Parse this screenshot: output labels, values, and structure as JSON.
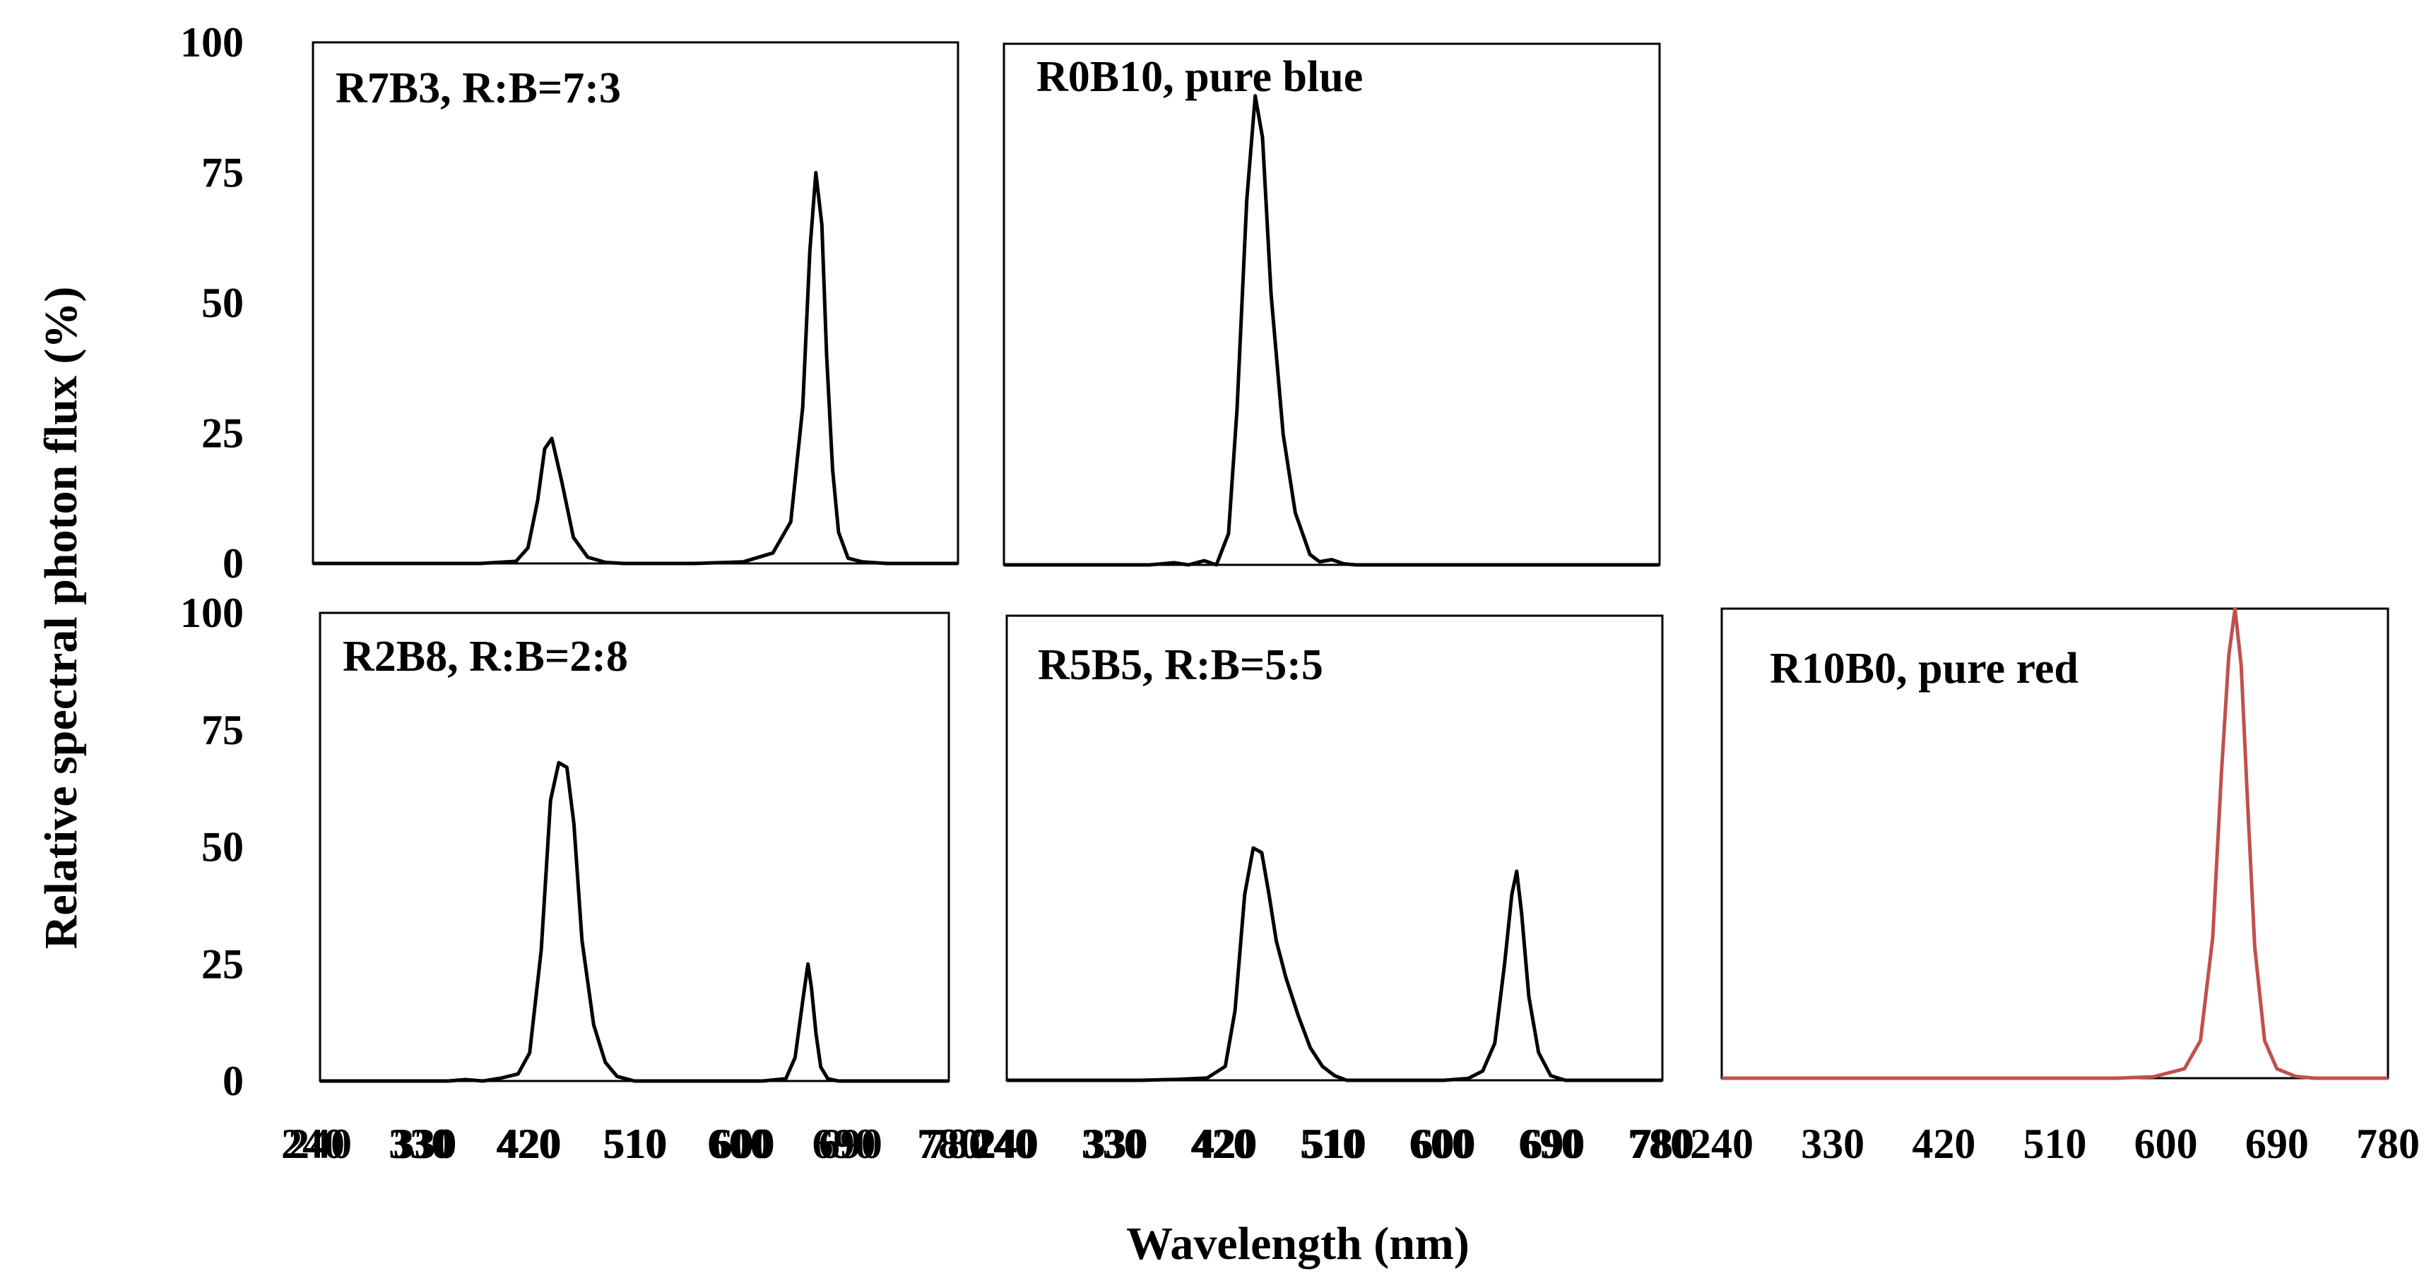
{
  "figure": {
    "ylabel": "Relative spectral photon flux (%)",
    "xlabel": "Wavelength (nm)"
  },
  "chart_data": [
    {
      "type": "line",
      "title": "R7B3, R:B=7:3",
      "xticks": [
        240,
        330,
        420,
        510,
        600,
        690,
        780
      ],
      "yticks": [
        0,
        25,
        50,
        75,
        100
      ],
      "xlim": [
        240,
        780
      ],
      "ylim": [
        0,
        100
      ],
      "grid": false,
      "series": [
        {
          "color": "#000000",
          "x": [
            240,
            380,
            410,
            420,
            428,
            434,
            440,
            448,
            458,
            470,
            485,
            500,
            560,
            600,
            625,
            640,
            650,
            656,
            661,
            666,
            670,
            675,
            680,
            688,
            700,
            720,
            780
          ],
          "y": [
            0,
            0,
            0.4,
            3,
            12,
            22,
            24,
            16,
            5,
            1.2,
            0.2,
            0,
            0,
            0.3,
            2,
            8,
            30,
            60,
            75,
            65,
            40,
            18,
            6,
            1,
            0.3,
            0,
            0
          ]
        }
      ]
    },
    {
      "type": "line",
      "title": "R0B10, pure blue",
      "xticks": [
        240,
        330,
        420,
        510,
        600,
        690,
        780
      ],
      "yticks": [
        0,
        25,
        50,
        75,
        100
      ],
      "xlim": [
        240,
        780
      ],
      "ylim": [
        0,
        100
      ],
      "grid": false,
      "series": [
        {
          "color": "#000000",
          "x": [
            240,
            360,
            380,
            392,
            405,
            415,
            425,
            432,
            440,
            447,
            453,
            460,
            470,
            480,
            492,
            500,
            510,
            520,
            530,
            780
          ],
          "y": [
            0,
            0,
            0.4,
            0,
            0.8,
            0,
            6,
            30,
            70,
            90,
            82,
            52,
            25,
            10,
            2,
            0.6,
            1,
            0.2,
            0,
            0
          ]
        }
      ]
    },
    {
      "type": "line",
      "title": "R2B8, R:B=2:8",
      "xticks": [
        240,
        330,
        420,
        510,
        600,
        690,
        780
      ],
      "yticks": [
        0,
        25,
        50,
        75,
        100
      ],
      "xlim": [
        240,
        780
      ],
      "ylim": [
        0,
        100
      ],
      "grid": false,
      "series": [
        {
          "color": "#000000",
          "x": [
            240,
            350,
            365,
            380,
            395,
            410,
            420,
            430,
            438,
            445,
            452,
            458,
            465,
            475,
            485,
            495,
            510,
            560,
            620,
            640,
            648,
            655,
            659,
            662,
            666,
            670,
            676,
            685,
            700,
            780
          ],
          "y": [
            0,
            0,
            0.3,
            0,
            0.6,
            1.5,
            6,
            28,
            60,
            68,
            67,
            55,
            30,
            12,
            4,
            1,
            0,
            0,
            0,
            0.5,
            5,
            18,
            25,
            20,
            10,
            3,
            0.5,
            0,
            0,
            0
          ]
        }
      ]
    },
    {
      "type": "line",
      "title": "R5B5, R:B=5:5",
      "xticks": [
        240,
        330,
        420,
        510,
        600,
        690,
        780
      ],
      "yticks": [
        0,
        25,
        50,
        75,
        100
      ],
      "xlim": [
        240,
        780
      ],
      "ylim": [
        0,
        100
      ],
      "grid": false,
      "series": [
        {
          "color": "#000000",
          "x": [
            240,
            350,
            380,
            405,
            420,
            428,
            436,
            443,
            450,
            456,
            462,
            470,
            480,
            490,
            500,
            510,
            520,
            560,
            600,
            620,
            632,
            642,
            650,
            656,
            660,
            664,
            670,
            678,
            688,
            700,
            780
          ],
          "y": [
            0,
            0,
            0.2,
            0.5,
            3,
            15,
            40,
            50,
            49,
            40,
            30,
            22,
            14,
            7,
            3,
            1,
            0,
            0,
            0,
            0.4,
            2,
            8,
            25,
            40,
            45,
            36,
            18,
            6,
            1,
            0,
            0
          ]
        }
      ]
    },
    {
      "type": "line",
      "title": "R10B0, pure red",
      "xticks": [
        240,
        330,
        420,
        510,
        600,
        690,
        780
      ],
      "yticks": [],
      "xlim": [
        240,
        780
      ],
      "ylim": [
        0,
        100
      ],
      "grid": false,
      "series": [
        {
          "color": "#c0504d",
          "x": [
            240,
            560,
            590,
            615,
            628,
            638,
            645,
            651,
            656,
            661,
            666,
            672,
            680,
            690,
            705,
            720,
            780
          ],
          "y": [
            0,
            0,
            0.3,
            2,
            8,
            30,
            65,
            90,
            100,
            88,
            60,
            28,
            8,
            2,
            0.4,
            0,
            0
          ]
        }
      ]
    }
  ]
}
